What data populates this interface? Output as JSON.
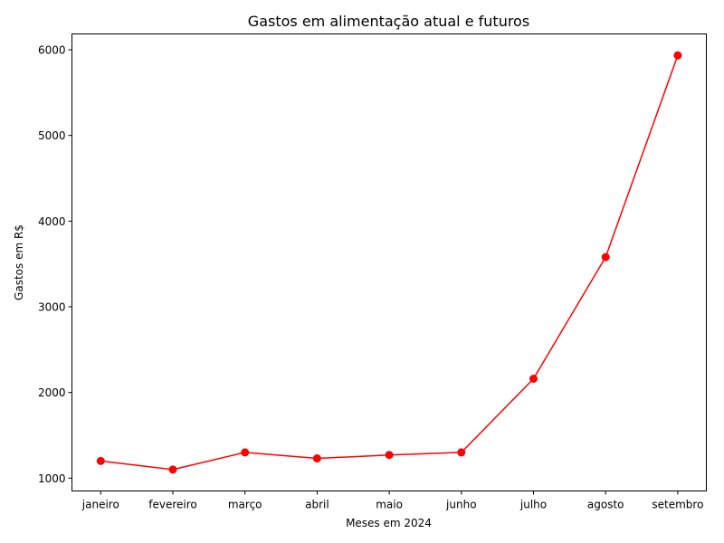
{
  "chart_data": {
    "type": "line",
    "title": "Gastos em alimentação atual e futuros",
    "xlabel": "Meses em 2024",
    "ylabel": "Gastos em R$",
    "categories": [
      "janeiro",
      "fevereiro",
      "março",
      "abril",
      "maio",
      "junho",
      "julho",
      "agosto",
      "setembro"
    ],
    "series": [
      {
        "values": [
          1200,
          1100,
          1300,
          1230,
          1270,
          1300,
          2160,
          3580,
          5935
        ]
      }
    ],
    "ylim": [
      850,
      6185
    ],
    "yticks": [
      1000,
      2000,
      3000,
      4000,
      5000,
      6000
    ],
    "grid": false,
    "line_color": "#ff0000",
    "marker": "circle"
  }
}
